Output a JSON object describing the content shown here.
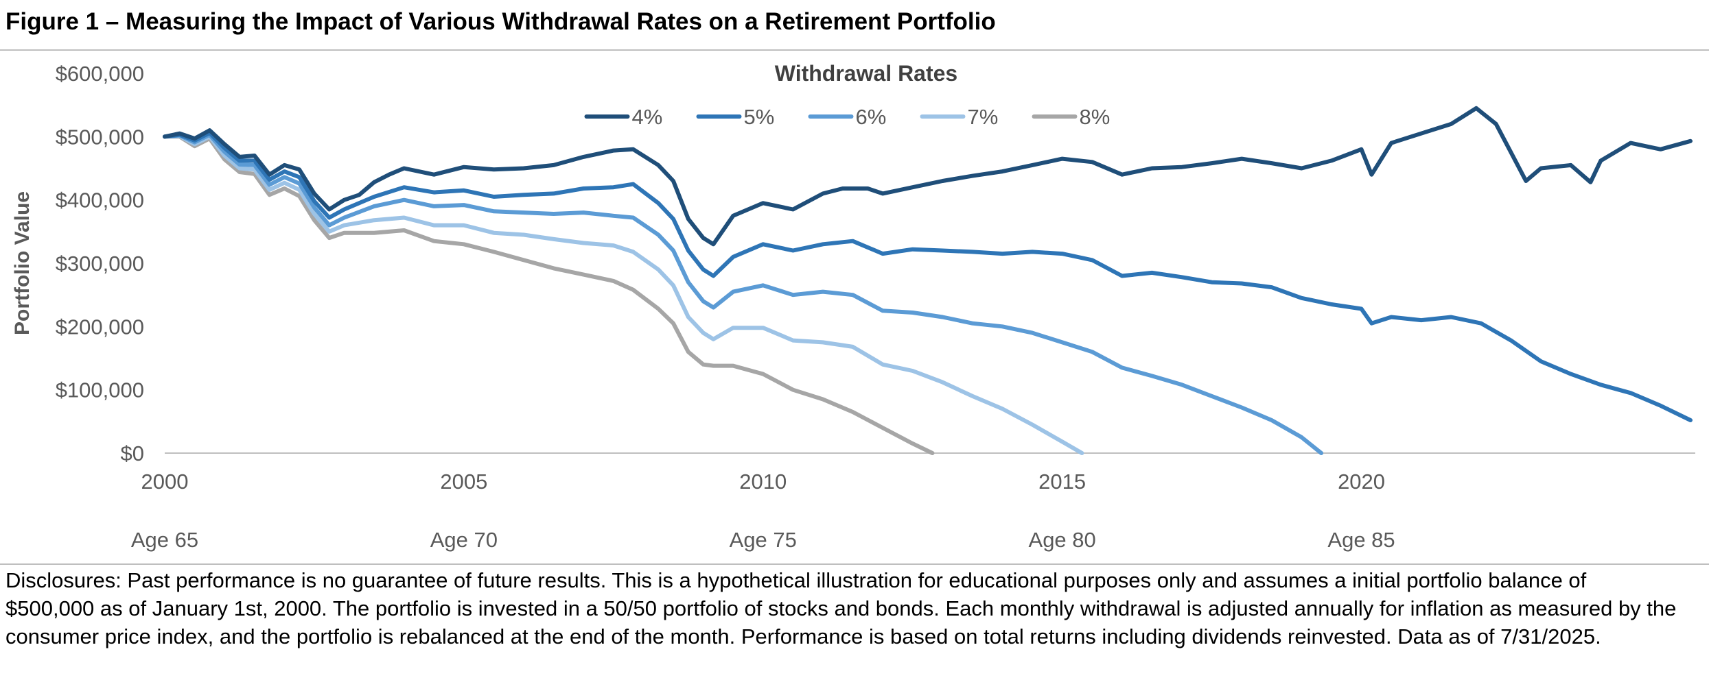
{
  "figure": {
    "title": "Figure 1 – Measuring the Impact of Various Withdrawal Rates on a Retirement Portfolio",
    "disclosure": "Disclosures: Past performance is no guarantee of future results. This is a hypothetical illustration for educational purposes only and assumes a initial portfolio balance of $500,000 as of January 1st, 2000. The portfolio is invested in a 50/50 portfolio of stocks and bonds. Each monthly withdrawal is adjusted annually for inflation as measured by the consumer price index, and the portfolio is rebalanced at the end of the month. Performance is based on total returns including dividends reinvested. Data as of 7/31/2025."
  },
  "chart_data": {
    "type": "line",
    "title": "",
    "xlabel": "",
    "ylabel": "Portfolio Value",
    "legend_title": "Withdrawal Rates",
    "legend_position": "top-center",
    "grid": false,
    "xlim": [
      2000,
      2025.58
    ],
    "ylim": [
      0,
      600000
    ],
    "y_ticks": [
      0,
      100000,
      200000,
      300000,
      400000,
      500000,
      600000
    ],
    "y_tick_labels": [
      "$0",
      "$100,000",
      "$200,000",
      "$300,000",
      "$400,000",
      "$500,000",
      "$600,000"
    ],
    "x_ticks": [
      2000,
      2005,
      2010,
      2015,
      2020
    ],
    "x_tick_labels": [
      "2000",
      "2005",
      "2010",
      "2015",
      "2020"
    ],
    "age_labels": [
      "Age 65",
      "Age 70",
      "Age 75",
      "Age 80",
      "Age 85"
    ],
    "colors": {
      "4%": "#1f4e79",
      "5%": "#2e75b6",
      "6%": "#5b9bd5",
      "7%": "#9dc3e6",
      "8%": "#a6a6a6"
    },
    "series": [
      {
        "name": "4%",
        "color": "#1f4e79",
        "x": [
          2000.0,
          2000.25,
          2000.5,
          2000.75,
          2001.0,
          2001.25,
          2001.5,
          2001.75,
          2002.0,
          2002.25,
          2002.5,
          2002.75,
          2003.0,
          2003.25,
          2003.5,
          2003.75,
          2004.0,
          2004.5,
          2005.0,
          2005.5,
          2006.0,
          2006.5,
          2007.0,
          2007.5,
          2007.83,
          2008.25,
          2008.5,
          2008.75,
          2009.0,
          2009.17,
          2009.5,
          2010.0,
          2010.5,
          2011.0,
          2011.33,
          2011.75,
          2012.0,
          2012.5,
          2013.0,
          2013.5,
          2014.0,
          2014.5,
          2015.0,
          2015.5,
          2016.0,
          2016.5,
          2017.0,
          2017.5,
          2018.0,
          2018.5,
          2019.0,
          2019.5,
          2020.0,
          2020.17,
          2020.5,
          2021.0,
          2021.5,
          2021.92,
          2022.25,
          2022.5,
          2022.75,
          2023.0,
          2023.5,
          2023.83,
          2024.0,
          2024.5,
          2025.0,
          2025.5
        ],
        "y": [
          500000,
          505000,
          497000,
          510000,
          488000,
          468000,
          470000,
          440000,
          455000,
          448000,
          410000,
          385000,
          400000,
          408000,
          428000,
          440000,
          450000,
          440000,
          452000,
          448000,
          450000,
          455000,
          468000,
          478000,
          480000,
          455000,
          430000,
          370000,
          340000,
          330000,
          375000,
          395000,
          385000,
          410000,
          418000,
          418000,
          410000,
          420000,
          430000,
          438000,
          445000,
          455000,
          465000,
          460000,
          440000,
          450000,
          452000,
          458000,
          465000,
          458000,
          450000,
          462000,
          480000,
          440000,
          490000,
          505000,
          520000,
          545000,
          520000,
          475000,
          430000,
          450000,
          455000,
          428000,
          462000,
          490000,
          480000,
          493000
        ]
      },
      {
        "name": "5%",
        "color": "#2e75b6",
        "x": [
          2000.0,
          2000.25,
          2000.5,
          2000.75,
          2001.0,
          2001.25,
          2001.5,
          2001.75,
          2002.0,
          2002.25,
          2002.5,
          2002.75,
          2003.0,
          2003.5,
          2004.0,
          2004.5,
          2005.0,
          2005.5,
          2006.0,
          2006.5,
          2007.0,
          2007.5,
          2007.83,
          2008.25,
          2008.5,
          2008.75,
          2009.0,
          2009.17,
          2009.5,
          2010.0,
          2010.5,
          2011.0,
          2011.5,
          2012.0,
          2012.5,
          2013.0,
          2013.5,
          2014.0,
          2014.5,
          2015.0,
          2015.5,
          2016.0,
          2016.5,
          2017.0,
          2017.5,
          2018.0,
          2018.5,
          2019.0,
          2019.5,
          2020.0,
          2020.17,
          2020.5,
          2021.0,
          2021.5,
          2022.0,
          2022.5,
          2023.0,
          2023.5,
          2024.0,
          2024.5,
          2025.0,
          2025.5
        ],
        "y": [
          500000,
          503000,
          494000,
          506000,
          482000,
          462000,
          462000,
          432000,
          445000,
          436000,
          398000,
          372000,
          385000,
          405000,
          420000,
          412000,
          415000,
          405000,
          408000,
          410000,
          418000,
          420000,
          425000,
          395000,
          370000,
          320000,
          290000,
          280000,
          310000,
          330000,
          320000,
          330000,
          335000,
          315000,
          322000,
          320000,
          318000,
          315000,
          318000,
          315000,
          305000,
          280000,
          285000,
          278000,
          270000,
          268000,
          262000,
          245000,
          235000,
          228000,
          205000,
          215000,
          210000,
          215000,
          205000,
          178000,
          145000,
          125000,
          108000,
          95000,
          75000,
          52000
        ]
      },
      {
        "name": "6%",
        "color": "#5b9bd5",
        "x": [
          2000.0,
          2000.25,
          2000.5,
          2000.75,
          2001.0,
          2001.25,
          2001.5,
          2001.75,
          2002.0,
          2002.25,
          2002.5,
          2002.75,
          2003.0,
          2003.5,
          2004.0,
          2004.5,
          2005.0,
          2005.5,
          2006.0,
          2006.5,
          2007.0,
          2007.5,
          2007.83,
          2008.25,
          2008.5,
          2008.75,
          2009.0,
          2009.17,
          2009.5,
          2010.0,
          2010.5,
          2011.0,
          2011.5,
          2012.0,
          2012.5,
          2013.0,
          2013.5,
          2014.0,
          2014.5,
          2015.0,
          2015.5,
          2016.0,
          2016.5,
          2017.0,
          2017.5,
          2018.0,
          2018.5,
          2019.0,
          2019.33
        ],
        "y": [
          500000,
          502000,
          491000,
          503000,
          476000,
          456000,
          455000,
          424000,
          436000,
          426000,
          388000,
          360000,
          372000,
          390000,
          400000,
          390000,
          392000,
          382000,
          380000,
          378000,
          380000,
          375000,
          372000,
          345000,
          320000,
          270000,
          240000,
          230000,
          255000,
          265000,
          250000,
          255000,
          250000,
          225000,
          222000,
          215000,
          205000,
          200000,
          190000,
          175000,
          160000,
          135000,
          122000,
          108000,
          90000,
          72000,
          52000,
          25000,
          0
        ]
      },
      {
        "name": "7%",
        "color": "#9dc3e6",
        "x": [
          2000.0,
          2000.25,
          2000.5,
          2000.75,
          2001.0,
          2001.25,
          2001.5,
          2001.75,
          2002.0,
          2002.25,
          2002.5,
          2002.75,
          2003.0,
          2003.5,
          2004.0,
          2004.5,
          2005.0,
          2005.5,
          2006.0,
          2006.5,
          2007.0,
          2007.5,
          2007.83,
          2008.25,
          2008.5,
          2008.75,
          2009.0,
          2009.17,
          2009.5,
          2010.0,
          2010.5,
          2011.0,
          2011.5,
          2012.0,
          2012.5,
          2013.0,
          2013.5,
          2014.0,
          2014.5,
          2015.0,
          2015.33
        ],
        "y": [
          500000,
          501000,
          488000,
          500000,
          470000,
          450000,
          448000,
          416000,
          427000,
          416000,
          378000,
          350000,
          360000,
          368000,
          372000,
          360000,
          360000,
          348000,
          345000,
          338000,
          332000,
          328000,
          318000,
          290000,
          265000,
          215000,
          190000,
          180000,
          198000,
          198000,
          178000,
          175000,
          168000,
          140000,
          130000,
          112000,
          90000,
          70000,
          45000,
          18000,
          0
        ]
      },
      {
        "name": "8%",
        "color": "#a6a6a6",
        "x": [
          2000.0,
          2000.25,
          2000.5,
          2000.75,
          2001.0,
          2001.25,
          2001.5,
          2001.75,
          2002.0,
          2002.25,
          2002.5,
          2002.75,
          2003.0,
          2003.5,
          2004.0,
          2004.5,
          2005.0,
          2005.5,
          2006.0,
          2006.5,
          2007.0,
          2007.5,
          2007.83,
          2008.25,
          2008.5,
          2008.75,
          2009.0,
          2009.17,
          2009.5,
          2010.0,
          2010.5,
          2011.0,
          2011.5,
          2012.0,
          2012.5,
          2012.83
        ],
        "y": [
          500000,
          500000,
          485000,
          497000,
          464000,
          444000,
          441000,
          408000,
          418000,
          406000,
          368000,
          340000,
          348000,
          348000,
          352000,
          335000,
          330000,
          318000,
          305000,
          292000,
          282000,
          272000,
          258000,
          228000,
          205000,
          160000,
          140000,
          138000,
          138000,
          125000,
          100000,
          85000,
          65000,
          40000,
          15000,
          0
        ]
      }
    ]
  }
}
